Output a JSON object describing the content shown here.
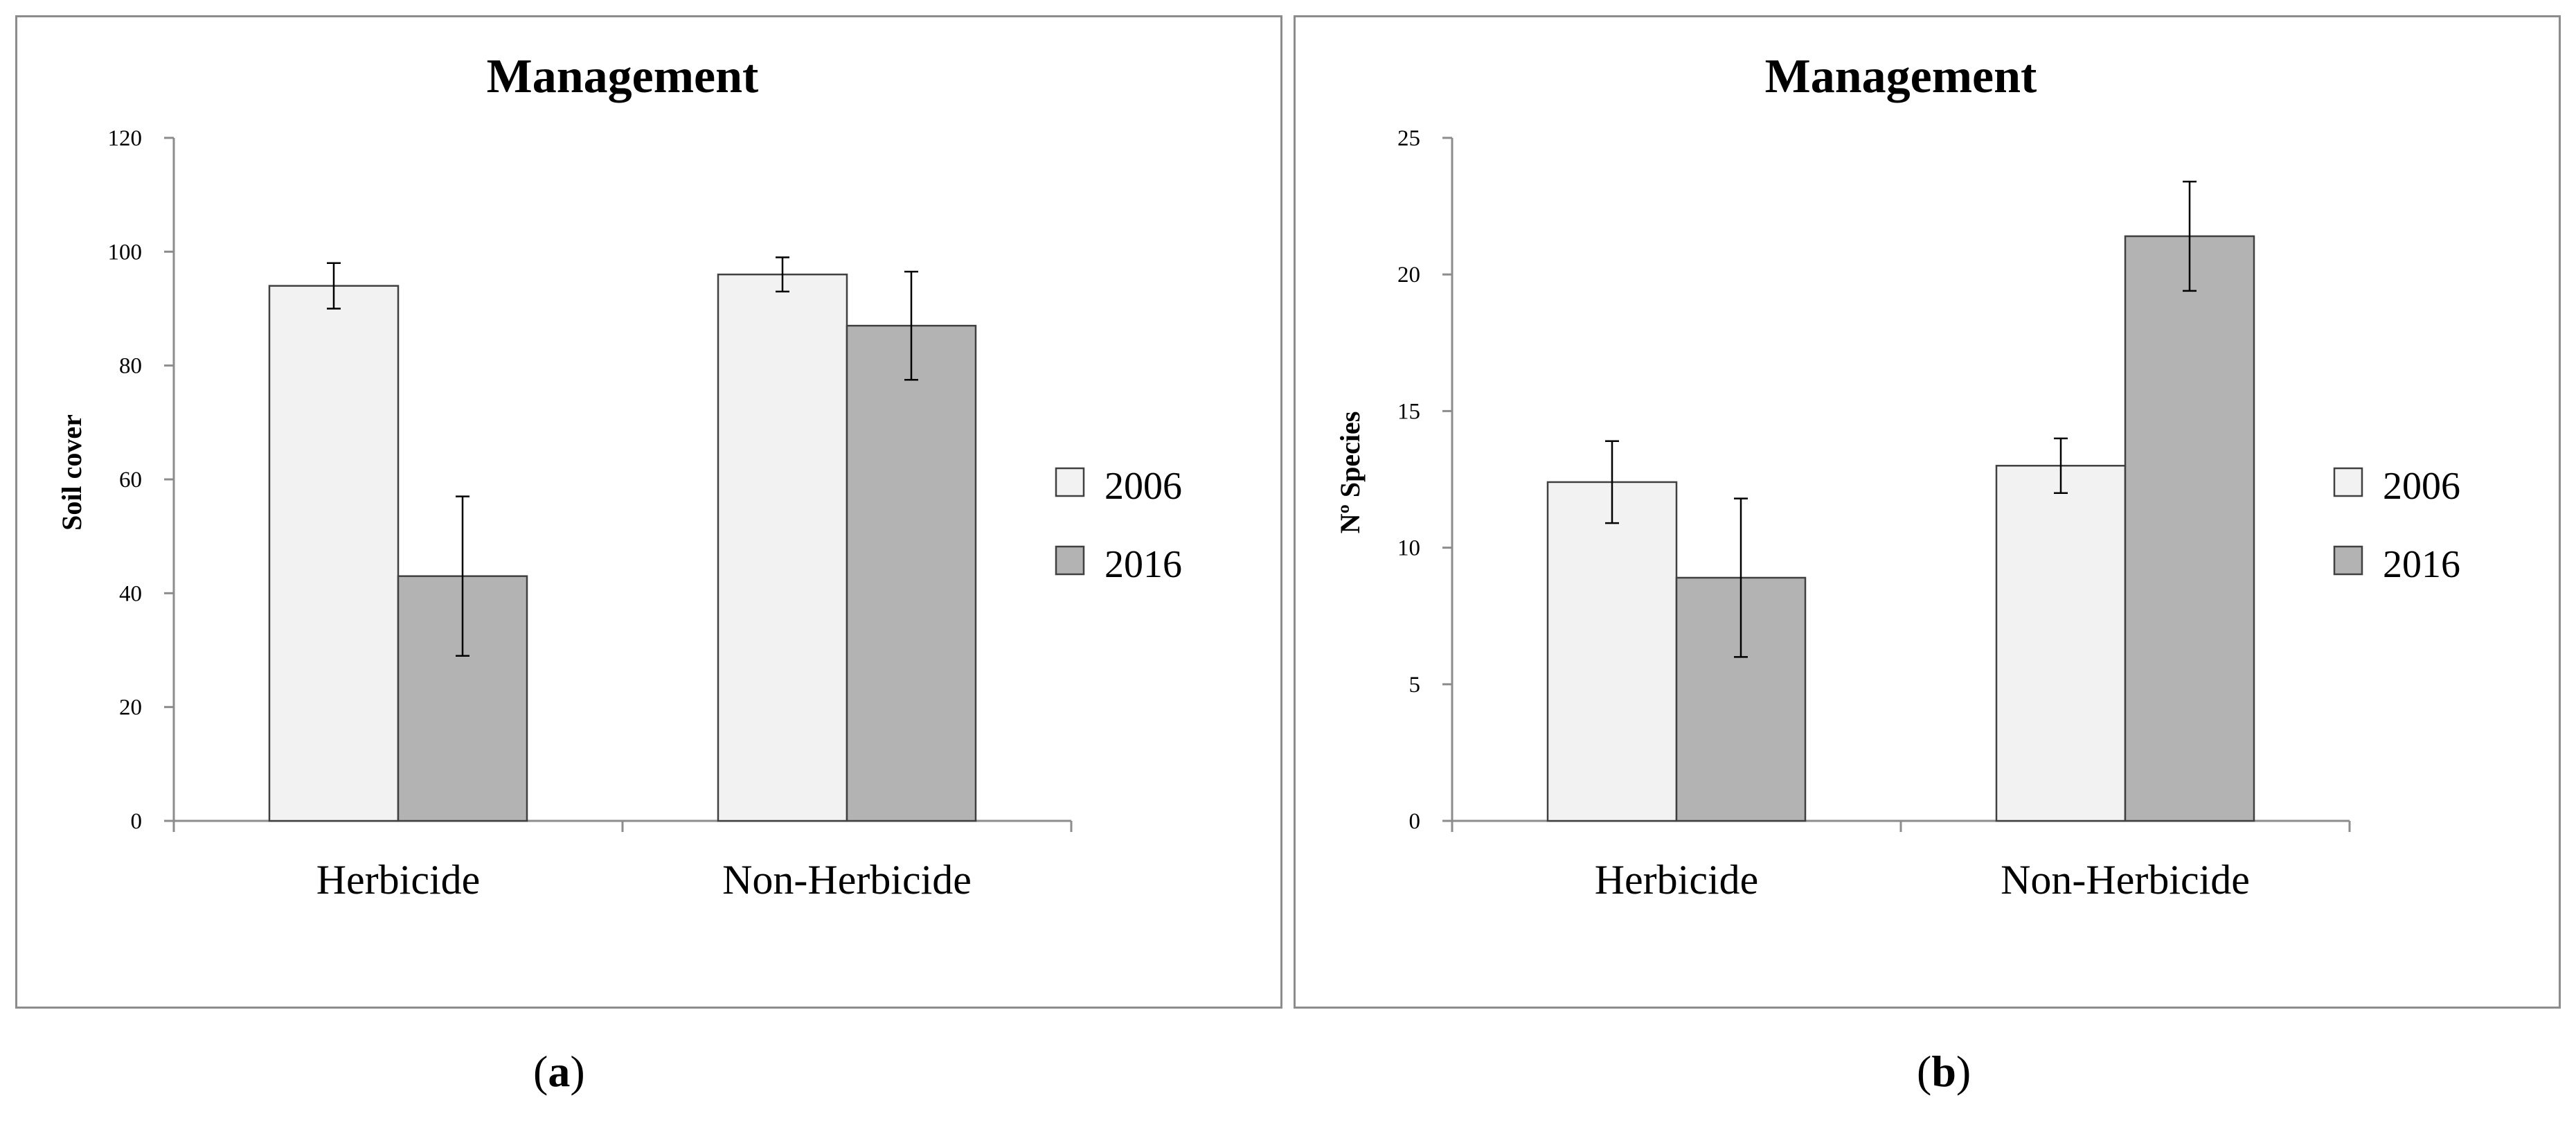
{
  "colors": {
    "series_2006": "#f2f2f2",
    "series_2016": "#b3b3b3",
    "axis": "#8c8c8c",
    "bar_stroke": "#404040",
    "error_bar": "#000000"
  },
  "chart_data": [
    {
      "type": "bar",
      "title": "Management",
      "xlabel": "",
      "ylabel": "Soil cover",
      "categories": [
        "Herbicide",
        "Non-Herbicide"
      ],
      "ylim": [
        0,
        120
      ],
      "yticks": [
        0,
        20,
        40,
        60,
        80,
        100,
        120
      ],
      "legend_position": "right",
      "series": [
        {
          "name": "2006",
          "values": [
            94,
            96
          ],
          "errors": [
            4,
            3
          ],
          "color_key": "series_2006"
        },
        {
          "name": "2016",
          "values": [
            43,
            87
          ],
          "errors": [
            14,
            9.5
          ],
          "color_key": "series_2016"
        }
      ]
    },
    {
      "type": "bar",
      "title": "Management",
      "xlabel": "",
      "ylabel": "Nº Species",
      "categories": [
        "Herbicide",
        "Non-Herbicide"
      ],
      "ylim": [
        0,
        25
      ],
      "yticks": [
        0,
        5,
        10,
        15,
        20,
        25
      ],
      "legend_position": "right",
      "series": [
        {
          "name": "2006",
          "values": [
            12.4,
            13
          ],
          "errors": [
            1.5,
            1
          ],
          "color_key": "series_2006"
        },
        {
          "name": "2016",
          "values": [
            8.9,
            21.4
          ],
          "errors": [
            2.9,
            2
          ],
          "color_key": "series_2016"
        }
      ]
    }
  ],
  "captions": {
    "a": "a",
    "b": "b"
  }
}
